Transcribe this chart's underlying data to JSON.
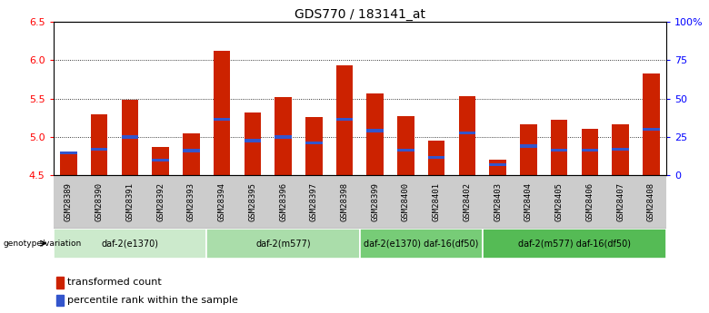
{
  "title": "GDS770 / 183141_at",
  "samples": [
    "GSM28389",
    "GSM28390",
    "GSM28391",
    "GSM28392",
    "GSM28393",
    "GSM28394",
    "GSM28395",
    "GSM28396",
    "GSM28397",
    "GSM28398",
    "GSM28399",
    "GSM28400",
    "GSM28401",
    "GSM28402",
    "GSM28403",
    "GSM28404",
    "GSM28405",
    "GSM28406",
    "GSM28407",
    "GSM28408"
  ],
  "transformed_count": [
    4.77,
    5.3,
    5.49,
    4.87,
    5.05,
    6.12,
    5.32,
    5.52,
    5.26,
    5.93,
    5.57,
    5.27,
    4.95,
    5.53,
    4.7,
    5.17,
    5.22,
    5.1,
    5.16,
    5.83
  ],
  "percentile_rank": [
    4.79,
    4.84,
    5.0,
    4.7,
    4.82,
    5.23,
    4.95,
    5.0,
    4.92,
    5.23,
    5.08,
    4.83,
    4.73,
    5.05,
    4.64,
    4.88,
    4.83,
    4.83,
    4.84,
    5.1
  ],
  "ylim": [
    4.5,
    6.5
  ],
  "yticks": [
    4.5,
    5.0,
    5.5,
    6.0,
    6.5
  ],
  "right_yticks": [
    0,
    25,
    50,
    75,
    100
  ],
  "right_ytick_labels": [
    "0",
    "25",
    "50",
    "75",
    "100%"
  ],
  "bar_color": "#CC2200",
  "blue_color": "#3355CC",
  "groups": [
    {
      "label": "daf-2(e1370)",
      "start": 0,
      "end": 5,
      "color": "#CCEACC"
    },
    {
      "label": "daf-2(m577)",
      "start": 5,
      "end": 10,
      "color": "#AADDAA"
    },
    {
      "label": "daf-2(e1370) daf-16(df50)",
      "start": 10,
      "end": 14,
      "color": "#77CC77"
    },
    {
      "label": "daf-2(m577) daf-16(df50)",
      "start": 14,
      "end": 20,
      "color": "#55BB55"
    }
  ],
  "group_row_label": "genotype/variation",
  "legend_items": [
    {
      "label": "transformed count",
      "color": "#CC2200"
    },
    {
      "label": "percentile rank within the sample",
      "color": "#3355CC"
    }
  ],
  "bar_width": 0.55,
  "tick_label_fontsize": 6.5,
  "title_fontsize": 10
}
